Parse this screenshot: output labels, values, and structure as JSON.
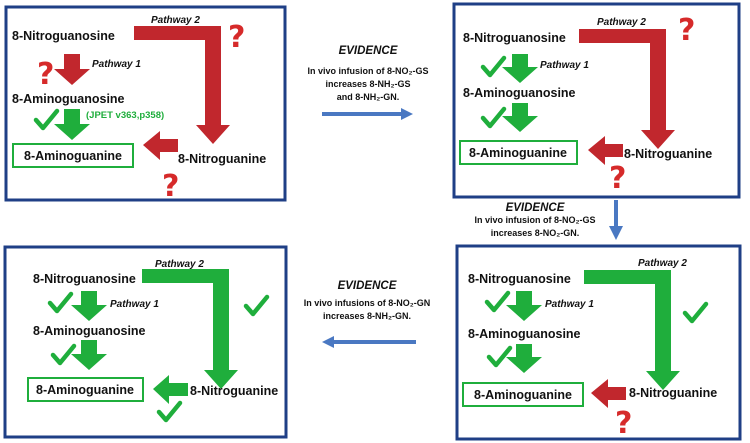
{
  "colors": {
    "panel_border": "#1f3f86",
    "red": "#c1272d",
    "green": "#1fae3c",
    "question": "#d62a2a",
    "evidence_arrow": "#4a78c2"
  },
  "panels": [
    {
      "nitroguanosine": "8-Nitroguanosine",
      "aminoguanosine": "8-Aminoguanosine",
      "aminoguanine": "8-Aminoguanine",
      "nitroguanine": "8-Nitroguanine",
      "pathway1": "Pathway 1",
      "pathway2": "Pathway 2",
      "citation": "(JPET v363,p358)",
      "pathway2_status": "unknown",
      "pathway1_top_status": "unknown",
      "pathway1_bottom_status": "confirmed",
      "nitroguanine_arrow_status": "unknown"
    },
    {
      "nitroguanosine": "8-Nitroguanosine",
      "aminoguanosine": "8-Aminoguanosine",
      "aminoguanine": "8-Aminoguanine",
      "nitroguanine": "8-Nitroguanine",
      "pathway1": "Pathway 1",
      "pathway2": "Pathway 2",
      "pathway2_status": "unknown",
      "pathway1_top_status": "confirmed",
      "pathway1_bottom_status": "confirmed",
      "nitroguanine_arrow_status": "unknown"
    },
    {
      "nitroguanosine": "8-Nitroguanosine",
      "aminoguanosine": "8-Aminoguanosine",
      "aminoguanine": "8-Aminoguanine",
      "nitroguanine": "8-Nitroguanine",
      "pathway1": "Pathway 1",
      "pathway2": "Pathway 2",
      "pathway2_status": "confirmed",
      "pathway1_top_status": "confirmed",
      "pathway1_bottom_status": "confirmed",
      "nitroguanine_arrow_status": "unknown"
    },
    {
      "nitroguanosine": "8-Nitroguanosine",
      "aminoguanosine": "8-Aminoguanosine",
      "aminoguanine": "8-Aminoguanine",
      "nitroguanine": "8-Nitroguanine",
      "pathway1": "Pathway 1",
      "pathway2": "Pathway 2",
      "pathway2_status": "confirmed",
      "pathway1_top_status": "confirmed",
      "pathway1_bottom_status": "confirmed",
      "nitroguanine_arrow_status": "confirmed"
    }
  ],
  "evidence": [
    {
      "title": "EVIDENCE",
      "line1": "In vivo infusion of  8-NO₂-GS",
      "line2": "increases 8-NH₂-GS",
      "line3": "and 8-NH₂-GN."
    },
    {
      "title": "EVIDENCE",
      "line1": "In vivo infusion of 8-NO₂-GS",
      "line2": "increases 8-NO₂-GN."
    },
    {
      "title": "EVIDENCE",
      "line1": "In vivo infusions of  8-NO₂-GN",
      "line2": "increases 8-NH₂-GN."
    }
  ]
}
